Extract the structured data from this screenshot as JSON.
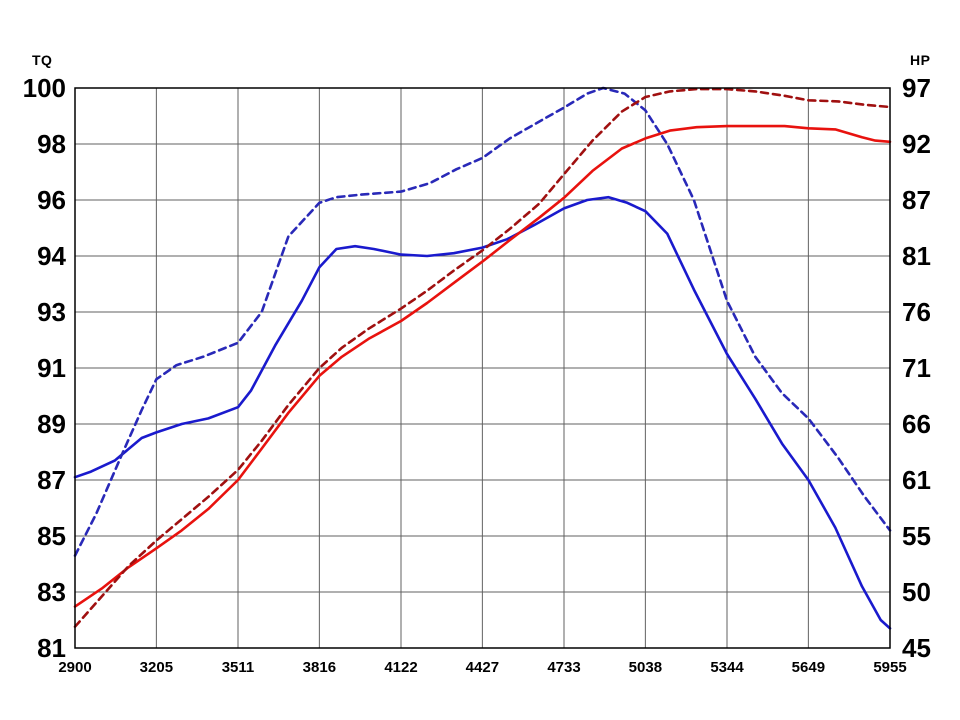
{
  "colors": {
    "background": "#ffffff",
    "grid": "#606060",
    "border": "#000000",
    "label": "#000000",
    "tq_solid": "#1a1acd",
    "tq_dashed": "#2929b8",
    "hp_solid": "#e8120e",
    "hp_dashed": "#a01010"
  },
  "chart_data": {
    "type": "line",
    "title": "",
    "legend": "none",
    "grid": true,
    "x_axis": {
      "label": "",
      "ticks": [
        2900,
        3205,
        3511,
        3816,
        4122,
        4427,
        4733,
        5038,
        5344,
        5649,
        5955
      ],
      "range": [
        2900,
        5955
      ]
    },
    "left_axis": {
      "title": "TQ",
      "ticks": [
        100,
        98,
        96,
        94,
        93,
        91,
        89,
        87,
        85,
        83,
        81
      ]
    },
    "right_axis": {
      "title": "HP",
      "ticks": [
        97,
        92,
        87,
        81,
        76,
        71,
        66,
        61,
        55,
        50,
        45
      ]
    },
    "series": [
      {
        "name": "tq-solid-blue",
        "axis": "left",
        "color": "#1a1acd",
        "dash": "",
        "points": [
          [
            2900,
            87.1
          ],
          [
            2960,
            87.3
          ],
          [
            3050,
            87.7
          ],
          [
            3150,
            88.5
          ],
          [
            3205,
            88.7
          ],
          [
            3300,
            89.0
          ],
          [
            3400,
            89.2
          ],
          [
            3511,
            89.6
          ],
          [
            3560,
            90.2
          ],
          [
            3650,
            91.8
          ],
          [
            3750,
            93.2
          ],
          [
            3816,
            93.8
          ],
          [
            3880,
            94.25
          ],
          [
            3950,
            94.35
          ],
          [
            4020,
            94.25
          ],
          [
            4122,
            94.05
          ],
          [
            4220,
            94.0
          ],
          [
            4320,
            94.1
          ],
          [
            4427,
            94.3
          ],
          [
            4520,
            94.6
          ],
          [
            4620,
            95.1
          ],
          [
            4733,
            95.7
          ],
          [
            4820,
            96.0
          ],
          [
            4900,
            96.1
          ],
          [
            4970,
            95.9
          ],
          [
            5038,
            95.6
          ],
          [
            5120,
            94.8
          ],
          [
            5220,
            93.4
          ],
          [
            5344,
            91.5
          ],
          [
            5450,
            89.9
          ],
          [
            5550,
            88.3
          ],
          [
            5649,
            87.0
          ],
          [
            5750,
            85.3
          ],
          [
            5850,
            83.2
          ],
          [
            5920,
            82.0
          ],
          [
            5955,
            81.7
          ]
        ]
      },
      {
        "name": "tq-dashed-blue",
        "axis": "left",
        "color": "#2929b8",
        "dash": "7 5",
        "points": [
          [
            2900,
            84.3
          ],
          [
            2980,
            85.8
          ],
          [
            3080,
            88.0
          ],
          [
            3150,
            89.5
          ],
          [
            3205,
            90.6
          ],
          [
            3280,
            91.1
          ],
          [
            3380,
            91.4
          ],
          [
            3511,
            91.9
          ],
          [
            3600,
            93.0
          ],
          [
            3700,
            94.7
          ],
          [
            3816,
            95.9
          ],
          [
            3880,
            96.1
          ],
          [
            3980,
            96.2
          ],
          [
            4122,
            96.3
          ],
          [
            4230,
            96.6
          ],
          [
            4330,
            97.1
          ],
          [
            4427,
            97.5
          ],
          [
            4530,
            98.2
          ],
          [
            4640,
            98.8
          ],
          [
            4733,
            99.3
          ],
          [
            4820,
            99.8
          ],
          [
            4880,
            100.0
          ],
          [
            4960,
            99.8
          ],
          [
            5038,
            99.2
          ],
          [
            5120,
            98.0
          ],
          [
            5220,
            96.0
          ],
          [
            5344,
            93.2
          ],
          [
            5450,
            91.4
          ],
          [
            5550,
            90.1
          ],
          [
            5649,
            89.2
          ],
          [
            5760,
            87.8
          ],
          [
            5860,
            86.4
          ],
          [
            5955,
            85.2
          ]
        ]
      },
      {
        "name": "hp-solid-red",
        "axis": "right",
        "color": "#e8120e",
        "dash": "",
        "points": [
          [
            2900,
            48.7
          ],
          [
            3000,
            50.3
          ],
          [
            3100,
            52.2
          ],
          [
            3205,
            53.9
          ],
          [
            3300,
            55.6
          ],
          [
            3400,
            57.9
          ],
          [
            3511,
            61.0
          ],
          [
            3600,
            63.8
          ],
          [
            3700,
            67.0
          ],
          [
            3816,
            70.3
          ],
          [
            3900,
            72.0
          ],
          [
            4000,
            73.6
          ],
          [
            4122,
            75.2
          ],
          [
            4220,
            76.8
          ],
          [
            4320,
            78.6
          ],
          [
            4427,
            80.5
          ],
          [
            4530,
            82.7
          ],
          [
            4640,
            85.1
          ],
          [
            4733,
            87.2
          ],
          [
            4840,
            89.6
          ],
          [
            4950,
            91.6
          ],
          [
            5038,
            92.5
          ],
          [
            5130,
            93.2
          ],
          [
            5230,
            93.5
          ],
          [
            5344,
            93.6
          ],
          [
            5450,
            93.6
          ],
          [
            5560,
            93.6
          ],
          [
            5649,
            93.4
          ],
          [
            5750,
            93.3
          ],
          [
            5850,
            92.6
          ],
          [
            5900,
            92.3
          ],
          [
            5955,
            92.2
          ]
        ]
      },
      {
        "name": "hp-dashed-red",
        "axis": "right",
        "color": "#a01010",
        "dash": "7 5",
        "points": [
          [
            2900,
            46.9
          ],
          [
            3000,
            49.6
          ],
          [
            3100,
            52.3
          ],
          [
            3205,
            54.6
          ],
          [
            3300,
            56.8
          ],
          [
            3400,
            59.2
          ],
          [
            3511,
            61.9
          ],
          [
            3600,
            64.5
          ],
          [
            3700,
            67.7
          ],
          [
            3816,
            71.0
          ],
          [
            3900,
            72.8
          ],
          [
            4000,
            74.5
          ],
          [
            4122,
            76.3
          ],
          [
            4220,
            77.9
          ],
          [
            4320,
            79.7
          ],
          [
            4427,
            81.6
          ],
          [
            4530,
            83.9
          ],
          [
            4640,
            86.6
          ],
          [
            4733,
            89.3
          ],
          [
            4840,
            92.3
          ],
          [
            4950,
            94.9
          ],
          [
            5038,
            96.2
          ],
          [
            5130,
            96.7
          ],
          [
            5230,
            96.9
          ],
          [
            5344,
            96.9
          ],
          [
            5450,
            96.7
          ],
          [
            5560,
            96.3
          ],
          [
            5649,
            95.9
          ],
          [
            5760,
            95.8
          ],
          [
            5860,
            95.5
          ],
          [
            5955,
            95.3
          ]
        ]
      }
    ]
  }
}
